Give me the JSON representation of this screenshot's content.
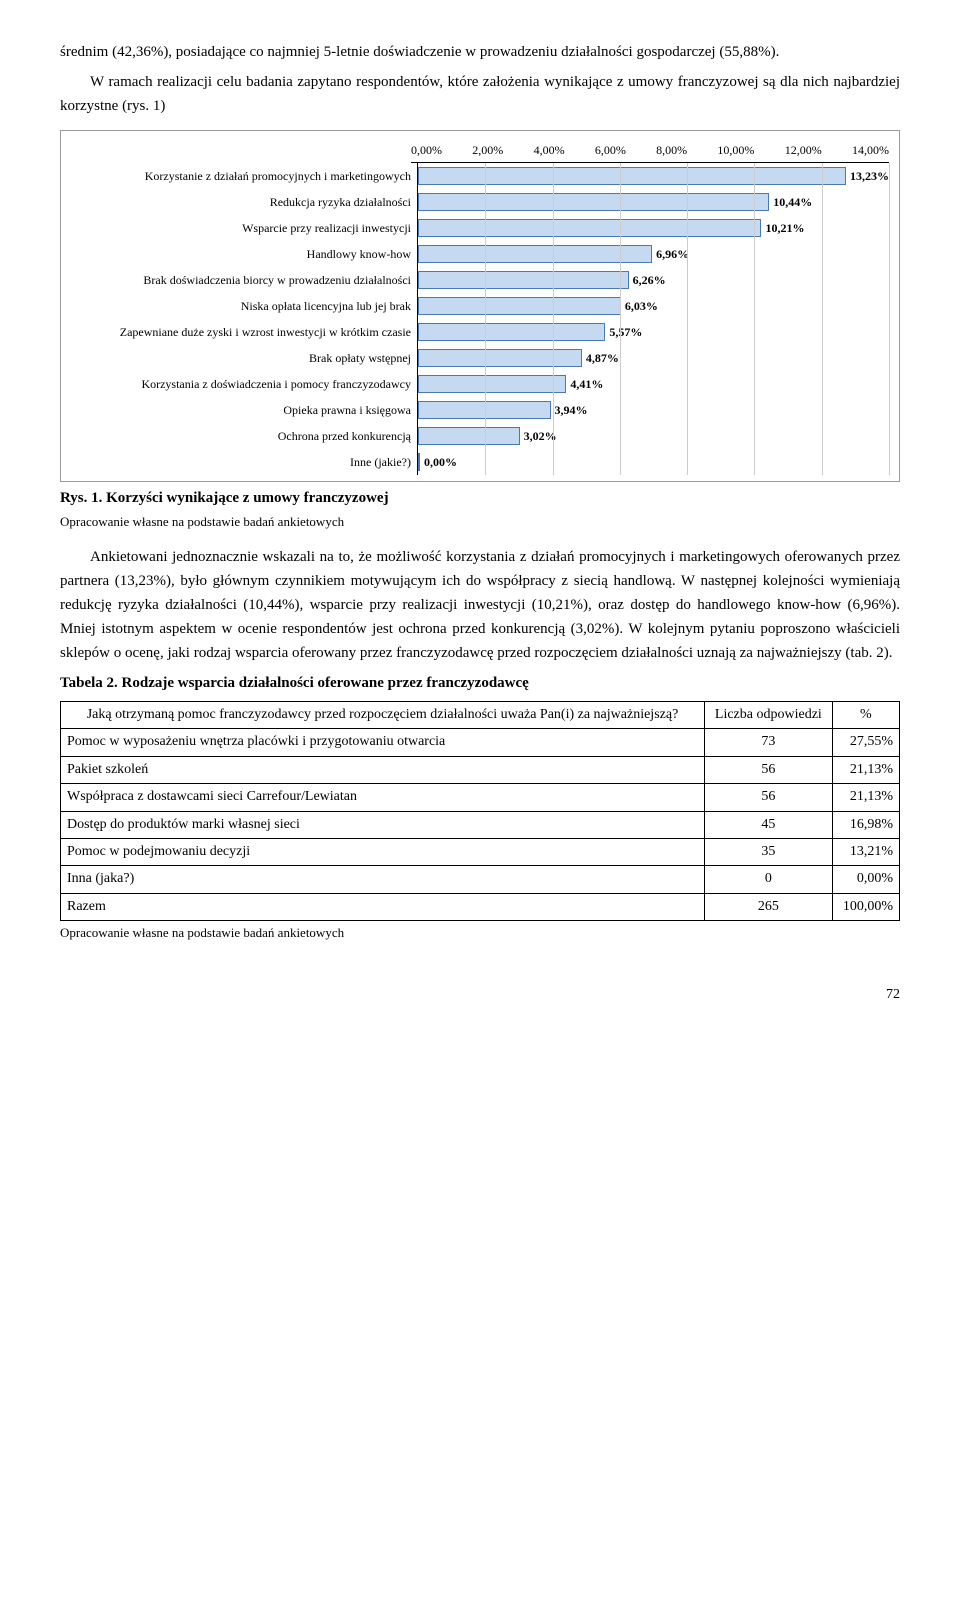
{
  "para1": "średnim (42,36%), posiadające co najmniej 5-letnie doświadczenie w prowadzeniu działalności gospodarczej (55,88%).",
  "para2": "W ramach realizacji celu badania zapytano respondentów, które założenia wynikające z umowy franczyzowej są dla nich najbardziej korzystne (rys. 1)",
  "chart": {
    "xmax": 14,
    "ticks": [
      "0,00%",
      "2,00%",
      "4,00%",
      "6,00%",
      "8,00%",
      "10,00%",
      "12,00%",
      "14,00%"
    ],
    "bar_bg": "#c5d9f1",
    "bar_border": "#4a78b5",
    "rows": [
      {
        "label": "Korzystanie z działań promocyjnych i marketingowych",
        "value": 13.23,
        "display": "13,23%"
      },
      {
        "label": "Redukcja ryzyka działalności",
        "value": 10.44,
        "display": "10,44%"
      },
      {
        "label": "Wsparcie przy realizacji inwestycji",
        "value": 10.21,
        "display": "10,21%"
      },
      {
        "label": "Handlowy know-how",
        "value": 6.96,
        "display": "6,96%"
      },
      {
        "label": "Brak doświadczenia biorcy w prowadzeniu działalności",
        "value": 6.26,
        "display": "6,26%"
      },
      {
        "label": "Niska opłata licencyjna lub jej brak",
        "value": 6.03,
        "display": "6,03%"
      },
      {
        "label": "Zapewniane duże zyski i wzrost inwestycji w krótkim czasie",
        "value": 5.57,
        "display": "5,57%"
      },
      {
        "label": "Brak opłaty wstępnej",
        "value": 4.87,
        "display": "4,87%"
      },
      {
        "label": "Korzystania z doświadczenia i pomocy franczyzodawcy",
        "value": 4.41,
        "display": "4,41%"
      },
      {
        "label": "Opieka prawna i księgowa",
        "value": 3.94,
        "display": "3,94%"
      },
      {
        "label": "Ochrona przed konkurencją",
        "value": 3.02,
        "display": "3,02%"
      },
      {
        "label": "Inne (jakie?)",
        "value": 0.0,
        "display": "0,00%"
      }
    ]
  },
  "fig_caption_bold": "Rys. 1. Korzyści wynikające z umowy franczyzowej",
  "fig_caption_sub": "Opracowanie własne na podstawie badań ankietowych",
  "para3": "Ankietowani jednoznacznie wskazali na to, że możliwość korzystania z działań promocyjnych i marketingowych oferowanych przez partnera (13,23%), było głównym czynnikiem motywującym ich do współpracy z siecią handlową. W następnej kolejności wymieniają redukcję ryzyka działalności (10,44%), wsparcie przy realizacji inwestycji (10,21%), oraz dostęp do handlowego know-how (6,96%). Mniej istotnym aspektem w ocenie respondentów jest ochrona przed konkurencją (3,02%). W kolejnym pytaniu poproszono właścicieli sklepów o ocenę, jaki rodzaj wsparcia oferowany przez franczyzodawcę przed rozpoczęciem działalności uznają za najważniejszy (tab. 2).",
  "table_caption": "Tabela 2. Rodzaje wsparcia działalności oferowane przez franczyzodawcę",
  "table": {
    "col1": "Jaką otrzymaną pomoc franczyzodawcy przed rozpoczęciem działalności uważa Pan(i) za najważniejszą?",
    "col2": "Liczba odpowiedzi",
    "col3": "%",
    "rows": [
      {
        "c1": "Pomoc w wyposażeniu wnętrza placówki i przygotowaniu otwarcia",
        "c2": "73",
        "c3": "27,55%"
      },
      {
        "c1": "Pakiet szkoleń",
        "c2": "56",
        "c3": "21,13%"
      },
      {
        "c1": "Współpraca z dostawcami sieci Carrefour/Lewiatan",
        "c2": "56",
        "c3": "21,13%"
      },
      {
        "c1": "Dostęp do produktów marki własnej sieci",
        "c2": "45",
        "c3": "16,98%"
      },
      {
        "c1": "Pomoc w podejmowaniu decyzji",
        "c2": "35",
        "c3": "13,21%"
      },
      {
        "c1": "Inna (jaka?)",
        "c2": "0",
        "c3": "0,00%"
      },
      {
        "c1": "Razem",
        "c2": "265",
        "c3": "100,00%"
      }
    ]
  },
  "table_sub": "Opracowanie własne na podstawie badań ankietowych",
  "page_number": "72"
}
